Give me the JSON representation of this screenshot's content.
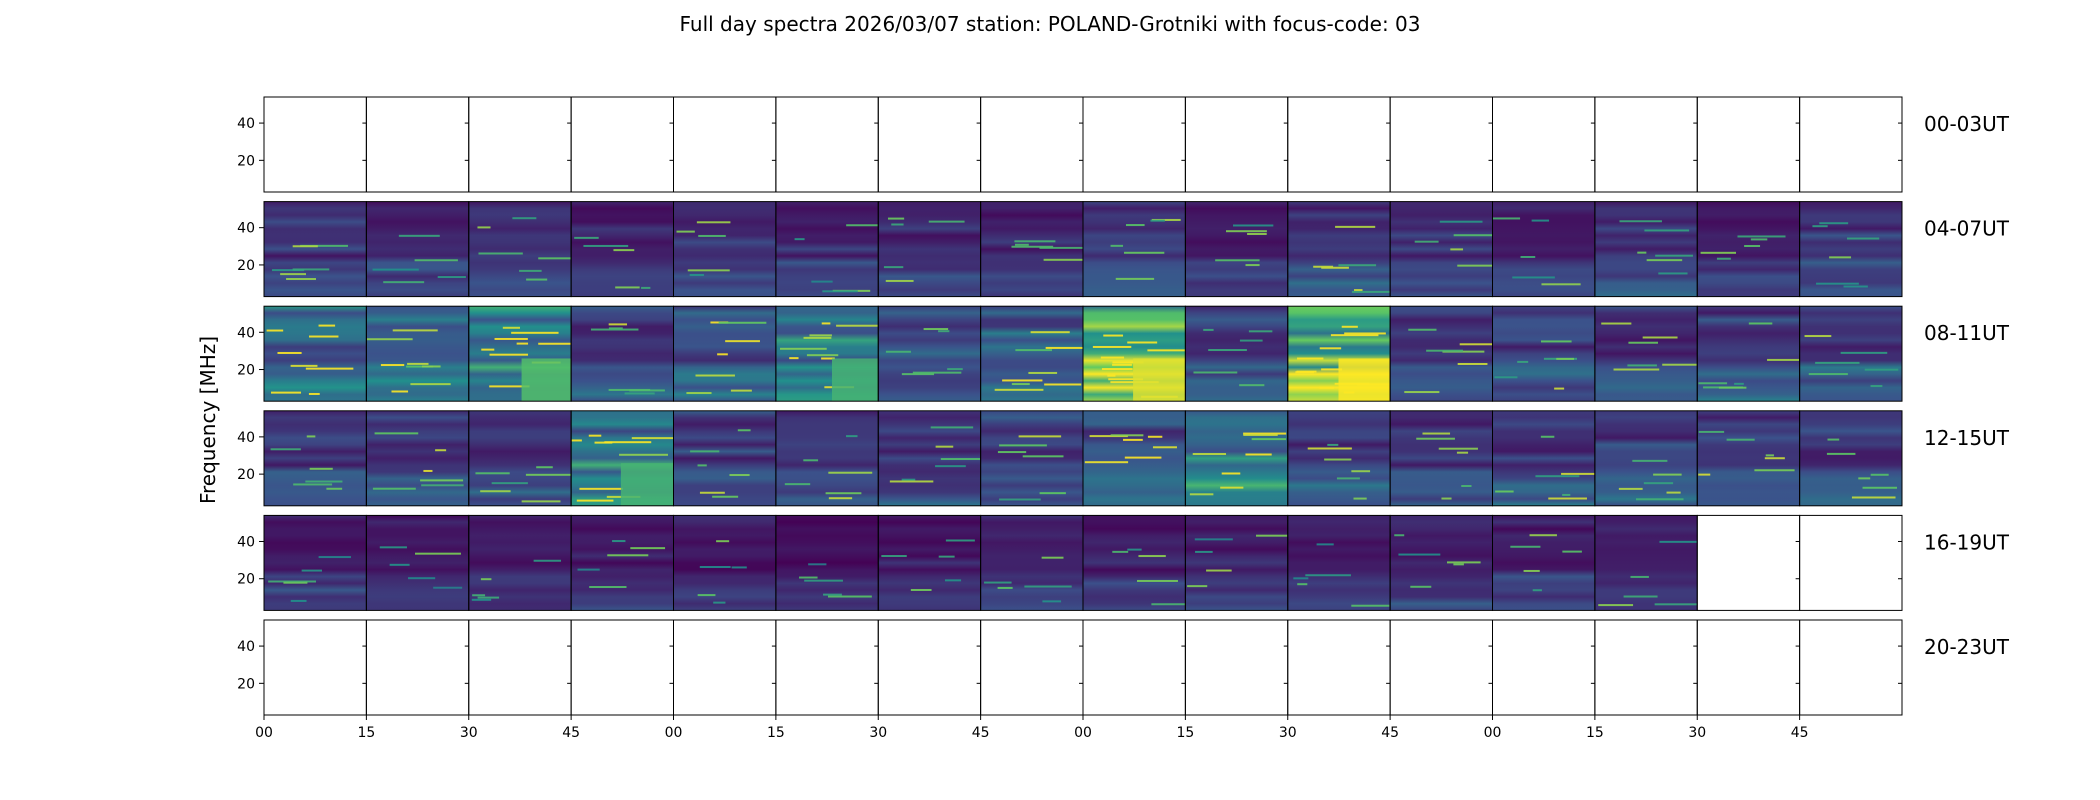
{
  "chart_data": {
    "type": "heatmap",
    "title": "Full day spectra 2026/03/07 station: POLAND-Grotniki with focus-code: 03",
    "ylabel": "Frequency [MHz]",
    "ylim": [
      3,
      54
    ],
    "yticks": [
      "40",
      "20"
    ],
    "ytick_values": [
      40,
      20
    ],
    "xticks": [
      "00",
      "15",
      "30",
      "45",
      "00",
      "15",
      "30",
      "45",
      "00",
      "15",
      "30",
      "45",
      "00",
      "15",
      "30",
      "45"
    ],
    "colormap": [
      "#440154",
      "#3b528b",
      "#21918c",
      "#5ec962",
      "#fde725"
    ],
    "rows": [
      {
        "label": "00-03UT",
        "panels": [
          0,
          0,
          0,
          0,
          0,
          0,
          0,
          0,
          0,
          0,
          0,
          0,
          0,
          0,
          0,
          0
        ]
      },
      {
        "label": "04-07UT",
        "panels": [
          0.25,
          0.22,
          0.28,
          0.2,
          0.24,
          0.22,
          0.24,
          0.22,
          0.3,
          0.22,
          0.28,
          0.24,
          0.22,
          0.28,
          0.2,
          0.26
        ]
      },
      {
        "label": "08-11UT",
        "panels": [
          0.5,
          0.45,
          0.6,
          0.3,
          0.4,
          0.55,
          0.3,
          0.45,
          0.85,
          0.3,
          0.9,
          0.3,
          0.28,
          0.28,
          0.3,
          0.3
        ]
      },
      {
        "label": "12-15UT",
        "panels": [
          0.3,
          0.32,
          0.3,
          0.55,
          0.3,
          0.28,
          0.25,
          0.3,
          0.38,
          0.5,
          0.3,
          0.3,
          0.3,
          0.3,
          0.3,
          0.3
        ]
      },
      {
        "label": "16-19UT",
        "panels": [
          0.2,
          0.18,
          0.18,
          0.17,
          0.17,
          0.16,
          0.17,
          0.2,
          0.2,
          0.2,
          0.2,
          0.2,
          0.2,
          0.2,
          0,
          0
        ]
      },
      {
        "label": "20-23UT",
        "panels": [
          0,
          0,
          0,
          0,
          0,
          0,
          0,
          0,
          0,
          0,
          0,
          0,
          0,
          0,
          0,
          0
        ]
      }
    ]
  }
}
